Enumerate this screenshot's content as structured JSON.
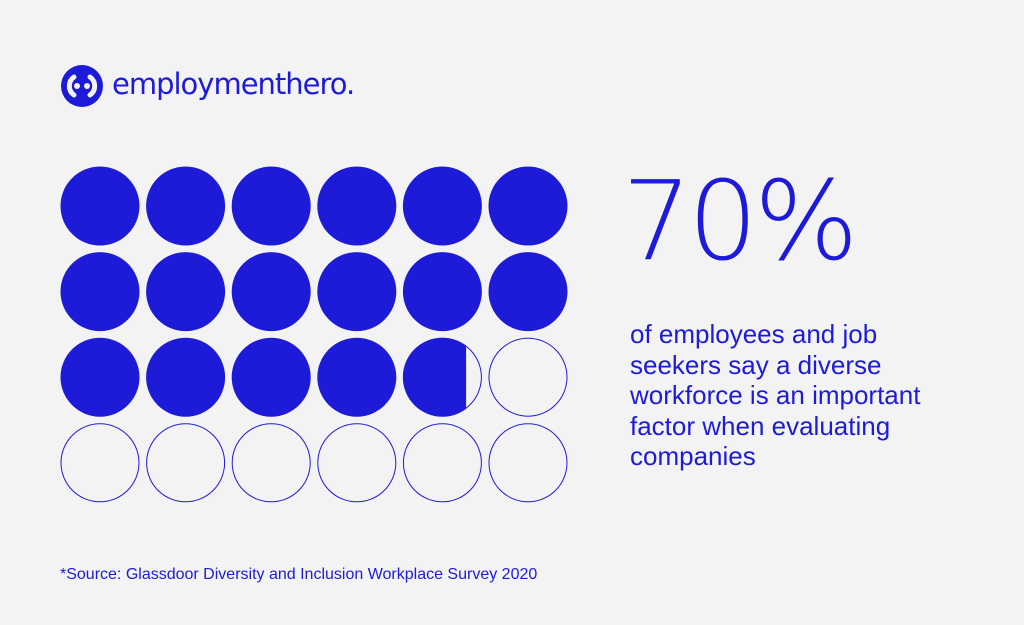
{
  "brand": {
    "name": "employmenthero.",
    "color": "#1d1bd8",
    "icon": "employment-hero-logo-icon"
  },
  "stat": {
    "value": "70%",
    "fraction": 0.7,
    "description": "of employees and job seekers say a diverse workforce is an important factor when evaluating companies"
  },
  "grid": {
    "rows": 4,
    "cols": 6,
    "filled_fraction": 0.7,
    "fill_color": "#1d1bd8",
    "background": "#f3f3f3"
  },
  "footnote": "*Source: Glassdoor Diversity and Inclusion Workplace Survey 2020"
}
